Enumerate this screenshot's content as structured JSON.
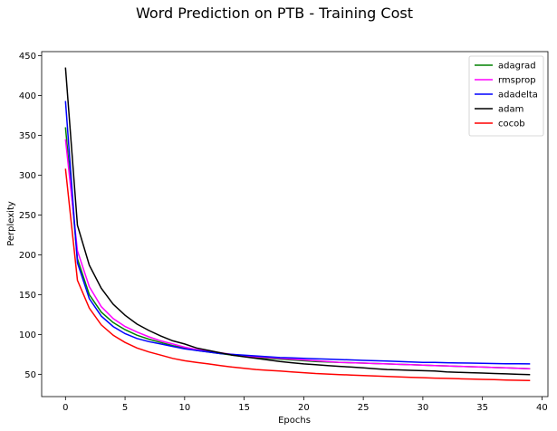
{
  "chart_data": {
    "type": "line",
    "title": "Word Prediction on PTB - Training Cost",
    "xlabel": "Epochs",
    "ylabel": "Perplexity",
    "xlim": [
      -2,
      40.5
    ],
    "ylim": [
      22,
      455
    ],
    "xticks": [
      0,
      5,
      10,
      15,
      20,
      25,
      30,
      35,
      40
    ],
    "yticks": [
      50,
      100,
      150,
      200,
      250,
      300,
      350,
      400,
      450
    ],
    "legend_position": "top-right",
    "grid": false,
    "x": [
      0,
      1,
      2,
      3,
      4,
      5,
      6,
      7,
      8,
      9,
      10,
      11,
      12,
      13,
      14,
      15,
      16,
      17,
      18,
      19,
      20,
      21,
      22,
      23,
      24,
      25,
      26,
      27,
      28,
      29,
      30,
      31,
      32,
      33,
      34,
      35,
      36,
      37,
      38,
      39
    ],
    "series": [
      {
        "name": "adagrad",
        "color": "#008000",
        "values": [
          360,
          195,
          150,
          128,
          115,
          106,
          99,
          94,
          90,
          86,
          83,
          80,
          78,
          76,
          74,
          73,
          71,
          70,
          69,
          68,
          67,
          66,
          65.5,
          65,
          64.5,
          64,
          63.5,
          63,
          62.5,
          62,
          61.5,
          61,
          60.5,
          60,
          59.5,
          59,
          58.5,
          58,
          57.5,
          57
        ]
      },
      {
        "name": "rmsprop",
        "color": "#ff00ff",
        "values": [
          345,
          205,
          160,
          135,
          120,
          110,
          103,
          97,
          92,
          88,
          84,
          81,
          79,
          77,
          75,
          73,
          72,
          71,
          70,
          69,
          68,
          67,
          66,
          65,
          64.5,
          64,
          63.5,
          63,
          62.5,
          62,
          61.5,
          61,
          60.5,
          60,
          59.5,
          59,
          58.5,
          58,
          57.5,
          57
        ]
      },
      {
        "name": "adadelta",
        "color": "#0000ff",
        "values": [
          393,
          190,
          145,
          123,
          110,
          101,
          95,
          91,
          88,
          85,
          82,
          80,
          78,
          76,
          75,
          74,
          73,
          72,
          71,
          70.5,
          70,
          69.5,
          69,
          68.5,
          68,
          67.5,
          67,
          66.5,
          66,
          65.5,
          65,
          64.8,
          64.5,
          64.2,
          64,
          63.8,
          63.5,
          63.3,
          63.1,
          63
        ]
      },
      {
        "name": "adam",
        "color": "#000000",
        "values": [
          435,
          237,
          187,
          158,
          138,
          124,
          113,
          105,
          98,
          92,
          88,
          83,
          80,
          77,
          74,
          72,
          70,
          68,
          66,
          64.5,
          63,
          62,
          61,
          60,
          59,
          58,
          57,
          56,
          55.5,
          55,
          54.5,
          54,
          53,
          52.5,
          52,
          51.5,
          51,
          50.5,
          50,
          49.5
        ]
      },
      {
        "name": "cocob",
        "color": "#ff0000",
        "values": [
          308,
          168,
          133,
          112,
          99,
          90,
          83,
          78,
          74,
          70,
          67,
          65,
          63,
          61,
          59,
          57.5,
          56,
          55,
          54,
          53,
          52,
          51,
          50.3,
          49.6,
          49,
          48.4,
          47.8,
          47.2,
          46.7,
          46.2,
          45.7,
          45.2,
          44.8,
          44.4,
          44,
          43.6,
          43.2,
          42.8,
          42.5,
          42.2
        ]
      }
    ]
  }
}
